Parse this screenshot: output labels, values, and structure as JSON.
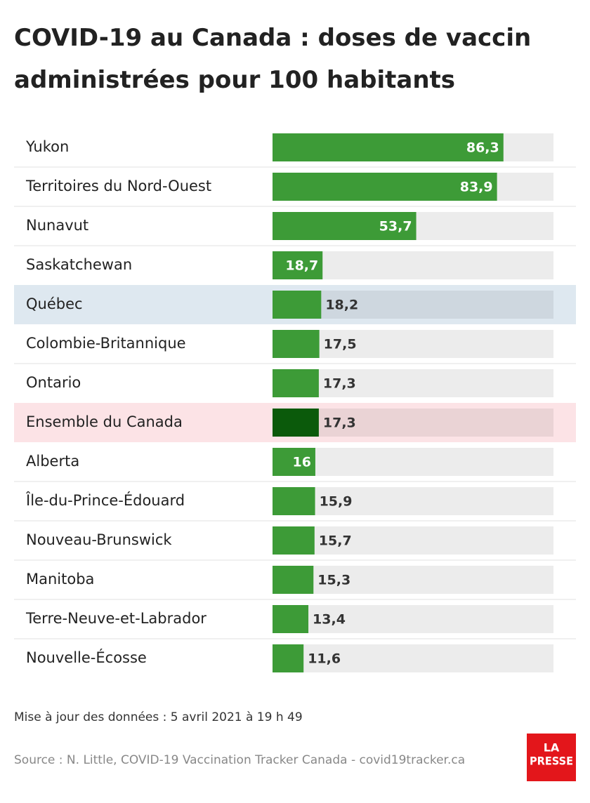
{
  "chart_data": {
    "type": "hbar",
    "title": "COVID-19 au Canada : doses de vaccin administrées pour 100 habitants",
    "categories": [
      "Yukon",
      "Territoires du Nord-Ouest",
      "Nunavut",
      "Saskatchewan",
      "Québec",
      "Colombie-Britannique",
      "Ontario",
      "Ensemble du Canada",
      "Alberta",
      "Île-du-Prince-Édouard",
      "Nouveau-Brunswick",
      "Manitoba",
      "Terre-Neuve-et-Labrador",
      "Nouvelle-Écosse"
    ],
    "values": [
      86.3,
      83.9,
      53.7,
      18.7,
      18.2,
      17.5,
      17.3,
      17.3,
      16,
      15.9,
      15.7,
      15.3,
      13.4,
      11.6
    ],
    "value_labels": [
      "86,3",
      "83,9",
      "53,7",
      "18,7",
      "18,2",
      "17,5",
      "17,3",
      "17,3",
      "16",
      "15,9",
      "15,7",
      "15,3",
      "13,4",
      "11,6"
    ],
    "xlim": [
      0,
      105
    ],
    "bar_colors": [
      "#3d9b37",
      "#3d9b37",
      "#3d9b37",
      "#3d9b37",
      "#3d9b37",
      "#3d9b37",
      "#3d9b37",
      "#0b5a0b",
      "#3d9b37",
      "#3d9b37",
      "#3d9b37",
      "#3d9b37",
      "#3d9b37",
      "#3d9b37"
    ],
    "row_backgrounds": [
      null,
      null,
      null,
      null,
      "#dee8f0",
      null,
      null,
      "#fce3e6",
      null,
      null,
      null,
      null,
      null,
      null
    ],
    "note": "Mise à jour des données : 5 avril 2021 à 19 h 49",
    "source": "Source : N. Little, COVID-19 Vaccination Tracker Canada - covid19tracker.ca"
  },
  "logo": {
    "line1": "LA",
    "line2": "PRESSE"
  }
}
